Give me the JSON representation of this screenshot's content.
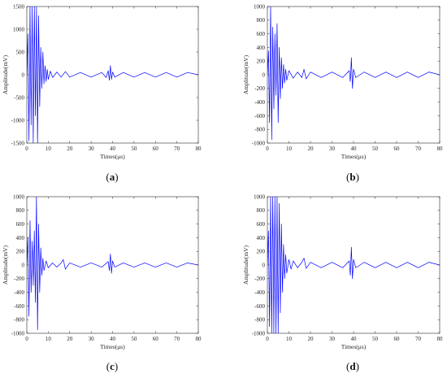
{
  "chart_data": [
    {
      "type": "line",
      "caption": "(a)",
      "caption_letter": "a",
      "xlabel": "Times(μs)",
      "ylabel": "Amplitude(mV)",
      "xlim": [
        0,
        80
      ],
      "ylim": [
        -1500,
        1500
      ],
      "xticks": [
        0,
        10,
        20,
        30,
        40,
        50,
        60,
        70,
        80
      ],
      "yticks": [
        -1500,
        -1000,
        -500,
        0,
        500,
        1000,
        1500
      ],
      "line_color": "#0000ff",
      "series": [
        {
          "x": [
            0,
            0.5,
            1.0,
            1.5,
            2.0,
            2.5,
            3.0,
            3.5,
            4.0,
            4.5,
            5.0,
            5.5,
            6.0,
            6.5,
            7.0,
            7.5,
            8.0,
            8.5,
            9.0,
            9.5,
            10.0,
            11.0,
            12.0,
            14.0,
            16.0,
            18.0,
            20.0,
            25.0,
            30.0,
            35.0,
            37.0,
            38.0,
            38.5,
            39.0,
            39.5,
            40.0,
            41.0,
            45.0,
            50.0,
            55.0,
            60.0,
            65.0,
            70.0,
            75.0,
            80.0
          ],
          "y": [
            0,
            900,
            -1450,
            1500,
            -1100,
            1500,
            -1500,
            1500,
            -900,
            1500,
            -1500,
            1300,
            -700,
            600,
            -300,
            500,
            -200,
            200,
            -150,
            120,
            -100,
            80,
            -60,
            60,
            -50,
            70,
            -50,
            50,
            -50,
            50,
            -60,
            90,
            -120,
            200,
            -100,
            60,
            -50,
            50,
            -50,
            50,
            -50,
            50,
            -50,
            50,
            0
          ]
        }
      ]
    },
    {
      "type": "line",
      "caption": "(b)",
      "caption_letter": "b",
      "xlabel": "Times(μs)",
      "ylabel": "Amplitude(mV)",
      "xlim": [
        0,
        80
      ],
      "ylim": [
        -1000,
        1000
      ],
      "xticks": [
        0,
        10,
        20,
        30,
        40,
        50,
        60,
        70,
        80
      ],
      "yticks": [
        -1000,
        -800,
        -600,
        -400,
        -200,
        0,
        200,
        400,
        600,
        800,
        1000
      ],
      "line_color": "#0000ff",
      "series": [
        {
          "x": [
            0,
            0.5,
            1.0,
            1.5,
            2.0,
            2.5,
            3.0,
            3.5,
            4.0,
            4.5,
            5.0,
            5.5,
            6.0,
            6.5,
            7.0,
            7.5,
            8.0,
            8.5,
            9.0,
            10.0,
            12.0,
            14.0,
            16.0,
            17.0,
            18.0,
            20.0,
            25.0,
            30.0,
            35.0,
            38.0,
            38.5,
            39.0,
            39.5,
            40.0,
            41.0,
            45.0,
            50.0,
            55.0,
            60.0,
            65.0,
            70.0,
            75.0,
            80.0
          ],
          "y": [
            0,
            350,
            -700,
            1000,
            -950,
            700,
            -500,
            600,
            -300,
            750,
            -700,
            400,
            -350,
            250,
            -200,
            150,
            -120,
            80,
            -80,
            60,
            -50,
            40,
            -40,
            80,
            -60,
            40,
            -40,
            40,
            -40,
            60,
            -100,
            250,
            -200,
            80,
            -40,
            40,
            -40,
            40,
            -40,
            40,
            -40,
            40,
            0
          ]
        }
      ]
    },
    {
      "type": "line",
      "caption": "(c)",
      "caption_letter": "c",
      "xlabel": "Times(μs)",
      "ylabel": "Amplitude(mV)",
      "xlim": [
        0,
        80
      ],
      "ylim": [
        -1000,
        1000
      ],
      "xticks": [
        0,
        10,
        20,
        30,
        40,
        50,
        60,
        70,
        80
      ],
      "yticks": [
        -1000,
        -800,
        -600,
        -400,
        -200,
        0,
        200,
        400,
        600,
        800,
        1000
      ],
      "line_color": "#0000ff",
      "series": [
        {
          "x": [
            0,
            0.5,
            1.0,
            1.5,
            2.0,
            2.5,
            3.0,
            3.5,
            4.0,
            4.5,
            5.0,
            5.5,
            6.0,
            6.5,
            7.0,
            7.5,
            8.0,
            9.0,
            10.0,
            12.0,
            14.0,
            16.0,
            17.0,
            18.0,
            20.0,
            25.0,
            30.0,
            35.0,
            38.0,
            38.5,
            39.0,
            39.5,
            40.0,
            41.0,
            45.0,
            50.0,
            55.0,
            60.0,
            65.0,
            70.0,
            75.0,
            80.0
          ],
          "y": [
            0,
            400,
            -750,
            650,
            -400,
            350,
            -300,
            500,
            -550,
            1000,
            -950,
            600,
            -400,
            250,
            -150,
            100,
            -80,
            60,
            -40,
            30,
            -30,
            30,
            80,
            -60,
            30,
            -30,
            30,
            -30,
            50,
            -80,
            160,
            -120,
            60,
            -30,
            30,
            -30,
            30,
            -30,
            30,
            -30,
            30,
            0
          ]
        }
      ]
    },
    {
      "type": "line",
      "caption": "(d)",
      "caption_letter": "d",
      "xlabel": "Times(μs)",
      "ylabel": "Amplitude(mV)",
      "xlim": [
        0,
        80
      ],
      "ylim": [
        -1000,
        1000
      ],
      "xticks": [
        0,
        10,
        20,
        30,
        40,
        50,
        60,
        70,
        80
      ],
      "yticks": [
        -1000,
        -800,
        -600,
        -400,
        -200,
        0,
        200,
        400,
        600,
        800,
        1000
      ],
      "line_color": "#0000ff",
      "series": [
        {
          "x": [
            0,
            0.5,
            1.0,
            1.5,
            2.0,
            2.5,
            3.0,
            3.5,
            4.0,
            4.5,
            5.0,
            5.5,
            6.0,
            6.5,
            7.0,
            7.5,
            8.0,
            8.5,
            9.0,
            10.0,
            11.0,
            12.0,
            14.0,
            16.0,
            17.0,
            18.0,
            20.0,
            25.0,
            30.0,
            35.0,
            38.0,
            38.5,
            39.0,
            39.5,
            40.0,
            41.0,
            45.0,
            50.0,
            55.0,
            60.0,
            65.0,
            70.0,
            75.0,
            80.0
          ],
          "y": [
            0,
            500,
            -900,
            1000,
            -1000,
            1000,
            -1000,
            1000,
            -1000,
            1000,
            -1000,
            900,
            -700,
            600,
            -400,
            300,
            -200,
            150,
            -120,
            80,
            -60,
            60,
            -40,
            40,
            100,
            -50,
            40,
            -40,
            40,
            -40,
            60,
            -150,
            260,
            -200,
            80,
            -40,
            40,
            -40,
            40,
            -40,
            40,
            -40,
            40,
            0
          ]
        }
      ]
    }
  ]
}
